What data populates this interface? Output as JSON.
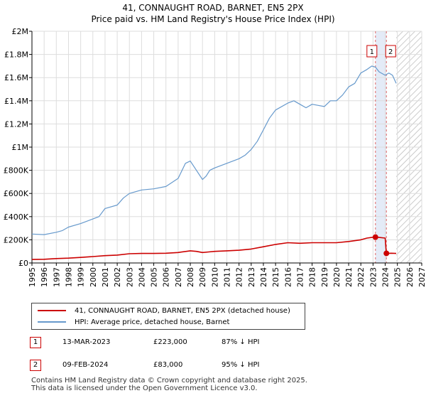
{
  "title": {
    "line1": "41, CONNAUGHT ROAD, BARNET, EN5 2PX",
    "line2": "Price paid vs. HM Land Registry's House Price Index (HPI)"
  },
  "legend": {
    "items": [
      {
        "label": "41, CONNAUGHT ROAD, BARNET, EN5 2PX (detached house)",
        "color": "#cc0000"
      },
      {
        "label": "HPI: Average price, detached house, Barnet",
        "color": "#6699cc"
      }
    ]
  },
  "transactions": [
    {
      "num": "1",
      "date": "13-MAR-2023",
      "price": "£223,000",
      "hpi": "87% ↓ HPI"
    },
    {
      "num": "2",
      "date": "09-FEB-2024",
      "price": "£83,000",
      "hpi": "95% ↓ HPI"
    }
  ],
  "footer": {
    "line1": "Contains HM Land Registry data © Crown copyright and database right 2025.",
    "line2": "This data is licensed under the Open Government Licence v3.0."
  },
  "chart_data": {
    "type": "line",
    "title": "41, CONNAUGHT ROAD, BARNET, EN5 2PX",
    "subtitle": "Price paid vs. HM Land Registry's House Price Index (HPI)",
    "xlabel": "",
    "ylabel": "",
    "xlim": [
      1995,
      2027
    ],
    "ylim": [
      0,
      2000000
    ],
    "y_ticks": [
      0,
      200000,
      400000,
      600000,
      800000,
      1000000,
      1200000,
      1400000,
      1600000,
      1800000,
      2000000
    ],
    "y_tick_labels": [
      "£0",
      "£200K",
      "£400K",
      "£600K",
      "£800K",
      "£1M",
      "£1.2M",
      "£1.4M",
      "£1.6M",
      "£1.8M",
      "£2M"
    ],
    "x_ticks": [
      1995,
      1996,
      1997,
      1998,
      1999,
      2000,
      2001,
      2002,
      2003,
      2004,
      2005,
      2006,
      2007,
      2008,
      2009,
      2010,
      2011,
      2012,
      2013,
      2014,
      2015,
      2016,
      2017,
      2018,
      2019,
      2020,
      2021,
      2022,
      2023,
      2024,
      2025,
      2026,
      2027
    ],
    "x_tick_labels": [
      "1995",
      "1996",
      "1997",
      "1998",
      "1999",
      "2000",
      "2001",
      "2002",
      "2003",
      "2004",
      "2005",
      "2006",
      "2007",
      "2008",
      "2009",
      "2010",
      "2011",
      "2012",
      "2013",
      "2014",
      "2015",
      "2016",
      "2017",
      "2018",
      "2019",
      "2020",
      "2021",
      "2022",
      "2023",
      "2024",
      "2025",
      "2026",
      "2027"
    ],
    "grid": true,
    "shaded_period": [
      2023.2,
      2024.1
    ],
    "hatched_from": 2024.9,
    "series": [
      {
        "name": "HPI: Average price, detached house, Barnet",
        "color": "#6699cc",
        "x": [
          1995,
          1996,
          1997,
          1997.5,
          1998,
          1999,
          2000,
          2000.5,
          2001,
          2002,
          2002.5,
          2003,
          2004,
          2005,
          2006,
          2007,
          2007.6,
          2008,
          2008.5,
          2009,
          2009.3,
          2009.6,
          2010,
          2011,
          2012,
          2012.5,
          2013,
          2013.5,
          2014,
          2014.5,
          2015,
          2016,
          2016.5,
          2017,
          2017.5,
          2018,
          2018.5,
          2019,
          2019.5,
          2020,
          2020.5,
          2021,
          2021.5,
          2022,
          2022.5,
          2022.9,
          2023.2,
          2023.5,
          2024,
          2024.3,
          2024.6,
          2024.9
        ],
        "y": [
          250000,
          245000,
          265000,
          280000,
          310000,
          340000,
          380000,
          400000,
          470000,
          500000,
          560000,
          600000,
          630000,
          640000,
          660000,
          730000,
          860000,
          880000,
          800000,
          720000,
          750000,
          800000,
          820000,
          860000,
          900000,
          930000,
          980000,
          1050000,
          1150000,
          1250000,
          1320000,
          1380000,
          1400000,
          1370000,
          1340000,
          1370000,
          1360000,
          1350000,
          1400000,
          1400000,
          1450000,
          1520000,
          1550000,
          1640000,
          1670000,
          1700000,
          1690000,
          1650000,
          1620000,
          1640000,
          1620000,
          1550000
        ]
      },
      {
        "name": "41, CONNAUGHT ROAD, BARNET, EN5 2PX (detached house)",
        "color": "#cc0000",
        "x": [
          1995,
          1996,
          1997,
          1998,
          1999,
          2000,
          2001,
          2002,
          2003,
          2004,
          2005,
          2006,
          2007,
          2008,
          2008.5,
          2009,
          2009.5,
          2010,
          2011,
          2012,
          2013,
          2014,
          2015,
          2016,
          2017,
          2018,
          2019,
          2020,
          2021,
          2022,
          2022.5,
          2023,
          2023.2,
          2023.5,
          2024,
          2024.1,
          2024.5,
          2024.9
        ],
        "y": [
          30000,
          32000,
          38000,
          42000,
          48000,
          55000,
          63000,
          68000,
          80000,
          82000,
          82000,
          84000,
          90000,
          105000,
          100000,
          90000,
          95000,
          100000,
          105000,
          110000,
          120000,
          140000,
          160000,
          175000,
          170000,
          175000,
          175000,
          175000,
          185000,
          200000,
          215000,
          222000,
          223000,
          220000,
          215000,
          83000,
          84000,
          82000
        ]
      }
    ],
    "markers": [
      {
        "label": "1",
        "x": 2023.2,
        "y": 223000
      },
      {
        "label": "2",
        "x": 2024.1,
        "y": 83000
      }
    ]
  }
}
